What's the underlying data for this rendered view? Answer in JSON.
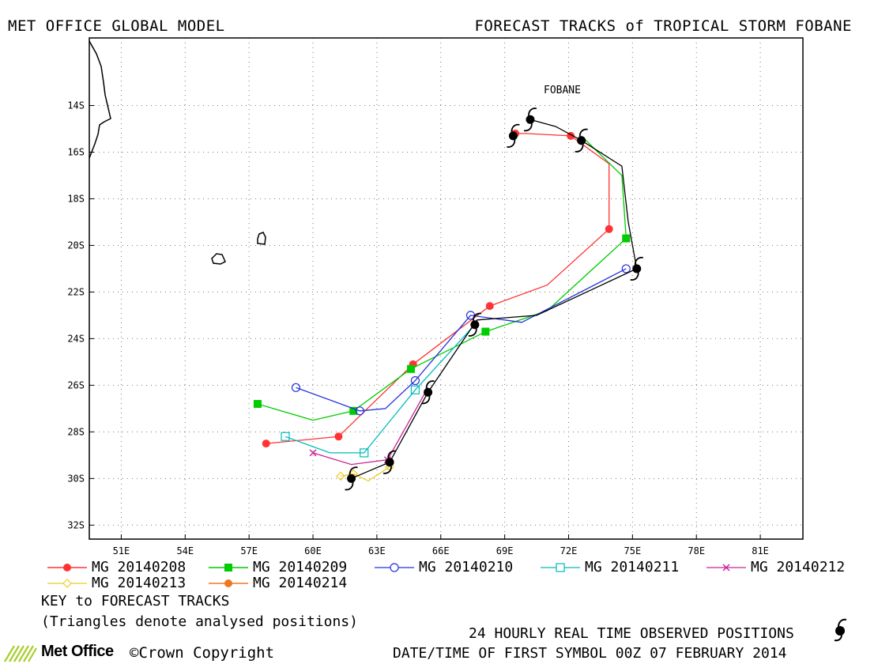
{
  "header": {
    "left_title": "MET OFFICE GLOBAL MODEL",
    "right_title": "FORECAST TRACKS of TROPICAL STORM FOBANE"
  },
  "storm_label": "FOBANE",
  "chart_data": {
    "type": "map",
    "x_ticks": [
      "51E",
      "54E",
      "57E",
      "60E",
      "63E",
      "66E",
      "69E",
      "72E",
      "75E",
      "78E",
      "81E"
    ],
    "y_ticks": [
      "14S",
      "16S",
      "18S",
      "20S",
      "22S",
      "24S",
      "26S",
      "28S",
      "30S",
      "32S"
    ],
    "lon_range": [
      49.5,
      83.0
    ],
    "lat_range": [
      -32.6,
      -11.1
    ],
    "observed": {
      "name": "24 HOURLY REAL TIME OBSERVED POSITIONS",
      "points": [
        [
          70.2,
          -14.6
        ],
        [
          69.4,
          -15.3
        ],
        [
          72.6,
          -15.5
        ],
        [
          75.2,
          -21.0
        ],
        [
          67.6,
          -23.4
        ],
        [
          65.4,
          -26.3
        ],
        [
          63.6,
          -29.3
        ],
        [
          61.8,
          -30.0
        ]
      ],
      "line": [
        [
          70.2,
          -14.6
        ],
        [
          71.4,
          -14.9
        ],
        [
          72.6,
          -15.5
        ],
        [
          74.5,
          -16.6
        ],
        [
          74.8,
          -19.0
        ],
        [
          75.2,
          -21.0
        ],
        [
          70.5,
          -23.0
        ],
        [
          67.7,
          -23.2
        ],
        [
          65.4,
          -26.3
        ],
        [
          63.6,
          -29.3
        ],
        [
          61.8,
          -30.0
        ]
      ]
    },
    "series": [
      {
        "name": "MG 20140208",
        "color": "#ff3333",
        "marker": "circle-filled",
        "x": [
          69.5,
          72.1,
          73.9,
          68.3,
          64.7,
          61.2,
          57.8
        ],
        "y": [
          -15.2,
          -15.3,
          -19.3,
          -22.6,
          -25.1,
          -28.2,
          -28.5
        ],
        "line": [
          [
            69.5,
            -15.2
          ],
          [
            70.0,
            -15.2
          ],
          [
            72.1,
            -15.3
          ],
          [
            73.9,
            -16.5
          ],
          [
            73.9,
            -19.3
          ],
          [
            71.0,
            -21.7
          ],
          [
            68.3,
            -22.6
          ],
          [
            64.7,
            -25.1
          ],
          [
            61.2,
            -28.2
          ],
          [
            57.8,
            -28.5
          ]
        ]
      },
      {
        "name": "MG 20140209",
        "color": "#00cc00",
        "marker": "square-filled",
        "x": [
          74.7,
          68.1,
          64.6,
          61.9,
          57.4
        ],
        "y": [
          -19.7,
          -23.7,
          -25.3,
          -27.1,
          -26.8
        ],
        "line": [
          [
            72.6,
            -15.3
          ],
          [
            74.5,
            -17.0
          ],
          [
            74.7,
            -19.7
          ],
          [
            71.0,
            -22.8
          ],
          [
            68.1,
            -23.7
          ],
          [
            64.6,
            -25.3
          ],
          [
            61.9,
            -27.1
          ],
          [
            60.0,
            -27.5
          ],
          [
            57.4,
            -26.8
          ]
        ]
      },
      {
        "name": "MG 20140210",
        "color": "#2233dd",
        "marker": "circle-open",
        "x": [
          74.7,
          67.4,
          64.8,
          62.2,
          59.2
        ],
        "y": [
          -21.0,
          -23.0,
          -25.8,
          -27.1,
          -26.1
        ],
        "line": [
          [
            74.7,
            -21.0
          ],
          [
            69.8,
            -23.3
          ],
          [
            67.4,
            -23.0
          ],
          [
            64.8,
            -25.8
          ],
          [
            63.4,
            -27.0
          ],
          [
            62.2,
            -27.1
          ],
          [
            59.2,
            -26.1
          ]
        ]
      },
      {
        "name": "MG 20140211",
        "color": "#00bbbb",
        "marker": "square-open",
        "x": [
          64.8,
          62.4,
          58.7
        ],
        "y": [
          -26.2,
          -28.9,
          -28.2
        ],
        "line": [
          [
            67.5,
            -23.5
          ],
          [
            64.8,
            -26.2
          ],
          [
            62.4,
            -28.9
          ],
          [
            60.8,
            -28.9
          ],
          [
            58.7,
            -28.2
          ]
        ]
      },
      {
        "name": "MG 20140212",
        "color": "#cc2299",
        "marker": "x",
        "x": [
          63.5,
          60.0
        ],
        "y": [
          -29.2,
          -28.9
        ],
        "line": [
          [
            65.4,
            -26.1
          ],
          [
            63.5,
            -29.2
          ],
          [
            61.8,
            -29.4
          ],
          [
            60.0,
            -28.9
          ]
        ]
      },
      {
        "name": "MG 20140213",
        "color": "#eecc22",
        "marker": "diamond-open",
        "x": [
          63.6,
          61.9,
          61.3
        ],
        "y": [
          -29.5,
          -29.8,
          -29.9
        ],
        "line": [
          [
            63.6,
            -29.5
          ],
          [
            62.6,
            -30.1
          ],
          [
            61.9,
            -29.8
          ],
          [
            61.3,
            -29.9
          ]
        ]
      },
      {
        "name": "MG 20140214",
        "color": "#ee7722",
        "marker": "circle-filled",
        "x": [],
        "y": [],
        "line": []
      }
    ]
  },
  "legend": {
    "key_title": "KEY to FORECAST TRACKS",
    "key_note": "(Triangles denote analysed positions)",
    "observed_label": "24 HOURLY REAL TIME OBSERVED POSITIONS",
    "date_line": "DATE/TIME OF FIRST SYMBOL 00Z 07 FEBRUARY 2014"
  },
  "brand": {
    "name": "Met Office",
    "copyright": "©Crown Copyright"
  }
}
